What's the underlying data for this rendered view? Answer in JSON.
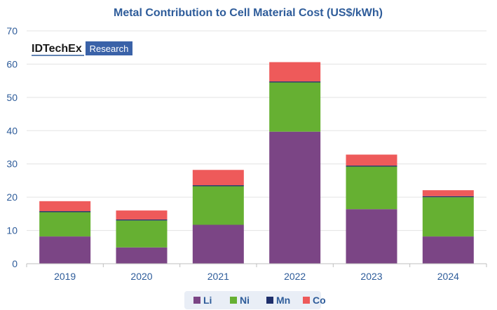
{
  "logo": {
    "brand": "IDTechEx",
    "badge": "Research"
  },
  "colors": {
    "Li": "#7B4585",
    "Ni": "#66B032",
    "Mn": "#1E2F6B",
    "Co": "#EE5A5A",
    "text": "#2E5C9A",
    "grid": "#E3E3E3",
    "legend_bg": "#E9EEF6"
  },
  "chart_data": {
    "type": "bar",
    "stacked": true,
    "title": "Metal Contribution to Cell Material Cost (US$/kWh)",
    "xlabel": "",
    "ylabel": "",
    "ylim": [
      0,
      70
    ],
    "yticks": [
      0,
      10,
      20,
      30,
      40,
      50,
      60,
      70
    ],
    "categories": [
      "2019",
      "2020",
      "2021",
      "2022",
      "2023",
      "2024"
    ],
    "series": [
      {
        "name": "Li",
        "values": [
          8.2,
          4.9,
          11.7,
          39.7,
          16.4,
          8.2
        ]
      },
      {
        "name": "Ni",
        "values": [
          7.3,
          8.1,
          11.6,
          14.8,
          12.8,
          11.8
        ]
      },
      {
        "name": "Mn",
        "values": [
          0.3,
          0.3,
          0.3,
          0.3,
          0.3,
          0.3
        ]
      },
      {
        "name": "Co",
        "values": [
          3.0,
          2.7,
          4.6,
          5.8,
          3.3,
          1.8
        ]
      }
    ],
    "legend": [
      "Li",
      "Ni",
      "Mn",
      "Co"
    ],
    "legend_position": "bottom",
    "grid": true
  }
}
